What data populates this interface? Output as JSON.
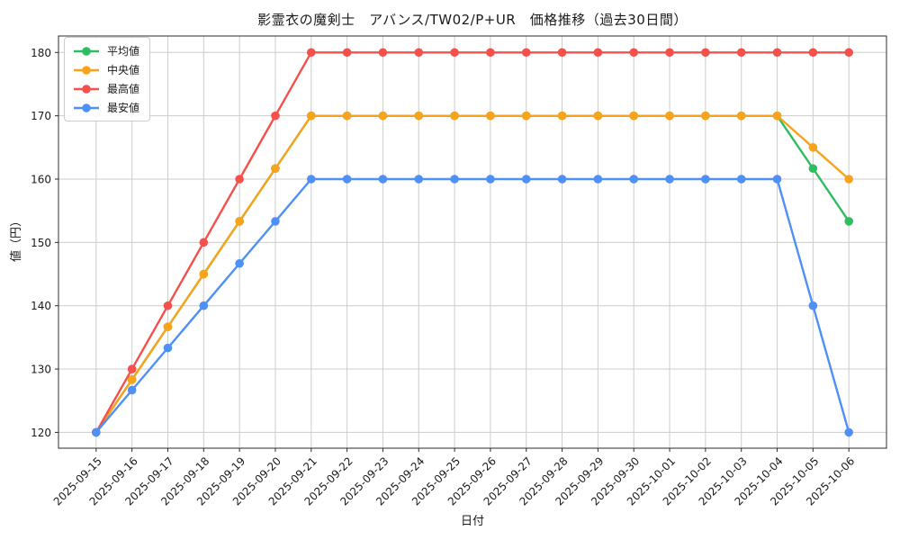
{
  "chart_data": {
    "type": "line",
    "title": "影霊衣の魔剣士　アバンス/TW02/P+UR　価格推移（過去30日間）",
    "xlabel": "日付",
    "ylabel": "値（円）",
    "x": [
      "2025-09-15",
      "2025-09-16",
      "2025-09-17",
      "2025-09-18",
      "2025-09-19",
      "2025-09-20",
      "2025-09-21",
      "2025-09-22",
      "2025-09-23",
      "2025-09-24",
      "2025-09-25",
      "2025-09-26",
      "2025-09-27",
      "2025-09-28",
      "2025-09-29",
      "2025-09-30",
      "2025-10-01",
      "2025-10-02",
      "2025-10-03",
      "2025-10-04",
      "2025-10-05",
      "2025-10-06"
    ],
    "yticks": [
      120,
      130,
      140,
      150,
      160,
      170,
      180
    ],
    "ylim": [
      117.5,
      182.6
    ],
    "grid": true,
    "legend_position": "upper-left",
    "colors": {
      "background": "#ffffff",
      "grid": "#cccccc",
      "spine": "#2b2b2b",
      "text": "#1a1a1a"
    },
    "series": [
      {
        "id": "mean",
        "name": "平均値",
        "color": "#2dbe60",
        "values": [
          120,
          128.33,
          136.67,
          145,
          153.33,
          161.67,
          170,
          170,
          170,
          170,
          170,
          170,
          170,
          170,
          170,
          170,
          170,
          170,
          170,
          170,
          161.67,
          153.33
        ]
      },
      {
        "id": "median",
        "name": "中央値",
        "color": "#f9a21b",
        "values": [
          120,
          128.33,
          136.67,
          145,
          153.33,
          161.67,
          170,
          170,
          170,
          170,
          170,
          170,
          170,
          170,
          170,
          170,
          170,
          170,
          170,
          170,
          165,
          160
        ]
      },
      {
        "id": "max",
        "name": "最高値",
        "color": "#f4504c",
        "values": [
          120,
          130,
          140,
          150,
          160,
          170,
          180,
          180,
          180,
          180,
          180,
          180,
          180,
          180,
          180,
          180,
          180,
          180,
          180,
          180,
          180,
          180
        ]
      },
      {
        "id": "min",
        "name": "最安値",
        "color": "#4e90f5",
        "values": [
          120,
          126.67,
          133.33,
          140,
          146.67,
          153.33,
          160,
          160,
          160,
          160,
          160,
          160,
          160,
          160,
          160,
          160,
          160,
          160,
          160,
          160,
          140,
          120
        ]
      }
    ]
  }
}
